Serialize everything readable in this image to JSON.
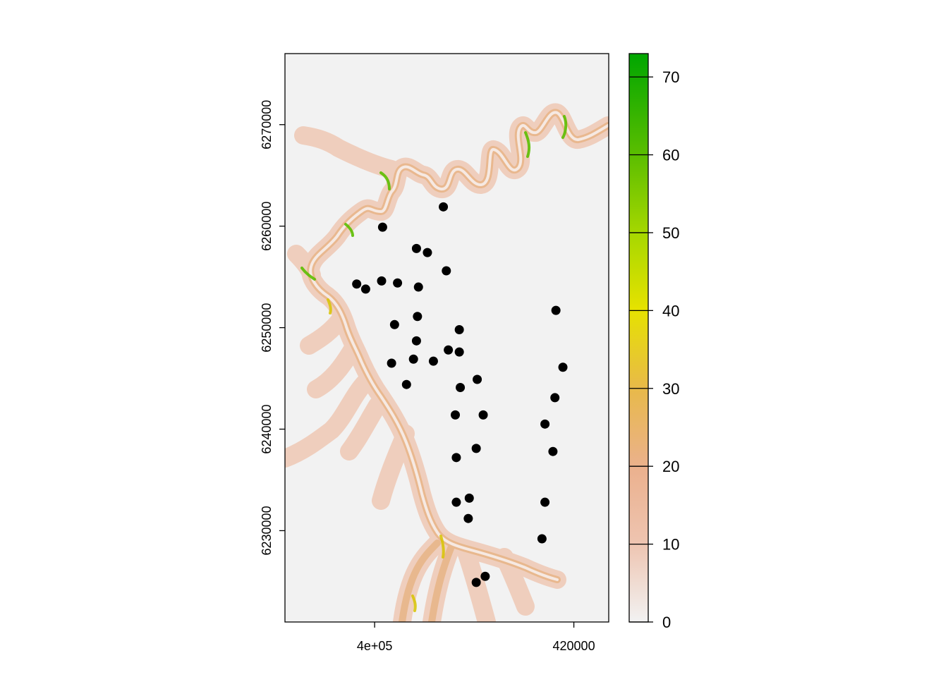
{
  "map": {
    "x_axis": {
      "ticks": [
        {
          "value": 400000,
          "label": "4e+05"
        },
        {
          "value": 420000,
          "label": "420000"
        }
      ],
      "range": [
        391000,
        423500
      ]
    },
    "y_axis": {
      "ticks": [
        {
          "value": 6230000,
          "label": "6230000"
        },
        {
          "value": 6240000,
          "label": "6240000"
        },
        {
          "value": 6250000,
          "label": "6250000"
        },
        {
          "value": 6260000,
          "label": "6260000"
        },
        {
          "value": 6270000,
          "label": "6270000"
        }
      ],
      "range": [
        6221000,
        6277000
      ]
    },
    "background_color": "#f2f2f2",
    "point_color": "#000000"
  },
  "legend": {
    "range": [
      0,
      73
    ],
    "ticks": [
      {
        "value": 0,
        "label": "0"
      },
      {
        "value": 10,
        "label": "10"
      },
      {
        "value": 20,
        "label": "20"
      },
      {
        "value": 30,
        "label": "30"
      },
      {
        "value": 40,
        "label": "40"
      },
      {
        "value": 50,
        "label": "50"
      },
      {
        "value": 60,
        "label": "60"
      },
      {
        "value": 70,
        "label": "70"
      }
    ],
    "colors": [
      "#f2f2f2",
      "#eec4b0",
      "#ebb18e",
      "#e8b94a",
      "#e6e200",
      "#a8d800",
      "#5cbe00",
      "#00a600"
    ]
  },
  "points": [
    {
      "x": 406900,
      "y": 6261900
    },
    {
      "x": 400800,
      "y": 6259900
    },
    {
      "x": 404200,
      "y": 6257800
    },
    {
      "x": 405300,
      "y": 6257400
    },
    {
      "x": 407200,
      "y": 6255600
    },
    {
      "x": 398200,
      "y": 6254300
    },
    {
      "x": 399100,
      "y": 6253800
    },
    {
      "x": 400700,
      "y": 6254600
    },
    {
      "x": 402300,
      "y": 6254400
    },
    {
      "x": 404400,
      "y": 6254000
    },
    {
      "x": 404300,
      "y": 6251100
    },
    {
      "x": 418200,
      "y": 6251700
    },
    {
      "x": 402000,
      "y": 6250300
    },
    {
      "x": 408500,
      "y": 6249800
    },
    {
      "x": 404200,
      "y": 6248700
    },
    {
      "x": 407400,
      "y": 6247800
    },
    {
      "x": 408500,
      "y": 6247600
    },
    {
      "x": 401700,
      "y": 6246500
    },
    {
      "x": 403900,
      "y": 6246900
    },
    {
      "x": 405900,
      "y": 6246700
    },
    {
      "x": 418900,
      "y": 6246100
    },
    {
      "x": 410300,
      "y": 6244900
    },
    {
      "x": 408600,
      "y": 6244100
    },
    {
      "x": 403200,
      "y": 6244400
    },
    {
      "x": 418100,
      "y": 6243100
    },
    {
      "x": 408100,
      "y": 6241400
    },
    {
      "x": 410900,
      "y": 6241400
    },
    {
      "x": 417100,
      "y": 6240500
    },
    {
      "x": 410200,
      "y": 6238100
    },
    {
      "x": 417900,
      "y": 6237800
    },
    {
      "x": 408200,
      "y": 6237200
    },
    {
      "x": 409500,
      "y": 6233200
    },
    {
      "x": 408200,
      "y": 6232800
    },
    {
      "x": 417100,
      "y": 6232800
    },
    {
      "x": 409400,
      "y": 6231200
    },
    {
      "x": 416800,
      "y": 6229200
    },
    {
      "x": 411100,
      "y": 6225500
    },
    {
      "x": 410200,
      "y": 6224900
    }
  ]
}
